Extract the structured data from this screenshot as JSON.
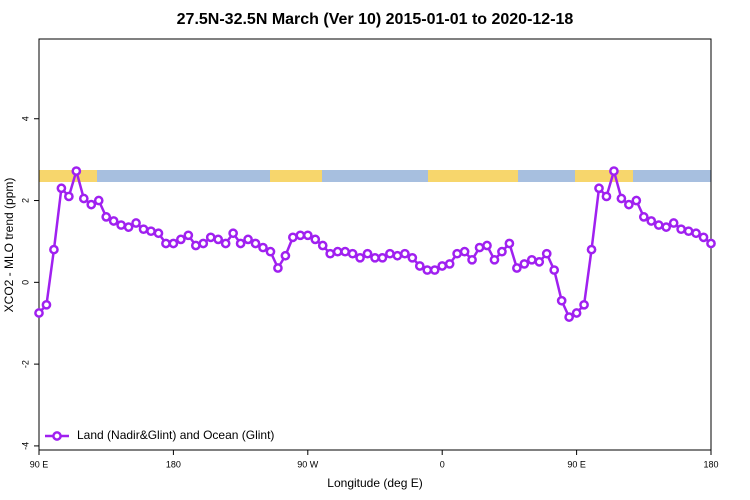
{
  "chart_data": {
    "type": "line",
    "title": "27.5N-32.5N March (Ver 10)   2015-01-01 to 2020-12-18",
    "x_label": "Longitude (deg E)",
    "y_label": "XCO2 - MLO trend (ppm)",
    "x": [
      90,
      95,
      100,
      105,
      110,
      115,
      120,
      125,
      130,
      135,
      140,
      145,
      150,
      155,
      160,
      165,
      170,
      175,
      180,
      185,
      190,
      195,
      200,
      205,
      210,
      215,
      220,
      225,
      230,
      235,
      240,
      245,
      250,
      255,
      260,
      265,
      270,
      275,
      280,
      285,
      290,
      295,
      300,
      305,
      310,
      315,
      320,
      325,
      330,
      335,
      340,
      345,
      350,
      355,
      360,
      365,
      370,
      375,
      380,
      385,
      390,
      395,
      400,
      405,
      410,
      415,
      420,
      425,
      430,
      435,
      440,
      445,
      450,
      455,
      460,
      465,
      470,
      475,
      480,
      485,
      490,
      495,
      500,
      505,
      510,
      515,
      520,
      525,
      530,
      535,
      540
    ],
    "series": [
      {
        "name": "Land (Nadir&Glint) and Ocean (Glint)",
        "color": "#a020f0",
        "values": [
          -0.75,
          -0.55,
          0.8,
          2.3,
          2.1,
          2.72,
          2.05,
          1.9,
          2.0,
          1.6,
          1.5,
          1.4,
          1.35,
          1.45,
          1.3,
          1.25,
          1.2,
          0.95,
          0.95,
          1.05,
          1.15,
          0.9,
          0.95,
          1.1,
          1.05,
          0.95,
          1.2,
          0.95,
          1.05,
          0.95,
          0.85,
          0.75,
          0.35,
          0.65,
          1.1,
          1.15,
          1.15,
          1.05,
          0.9,
          0.7,
          0.75,
          0.75,
          0.7,
          0.6,
          0.7,
          0.6,
          0.6,
          0.7,
          0.65,
          0.7,
          0.6,
          0.4,
          0.3,
          0.3,
          0.4,
          0.45,
          0.7,
          0.75,
          0.55,
          0.85,
          0.9,
          0.55,
          0.75,
          0.95,
          0.35,
          0.45,
          0.55,
          0.5,
          0.7,
          0.3,
          -0.45,
          -0.85,
          -0.75,
          -0.55,
          0.8,
          2.3,
          2.1,
          2.72,
          2.05,
          1.9,
          2.0,
          1.6,
          1.5,
          1.4,
          1.35,
          1.45,
          1.3,
          1.25,
          1.2,
          1.1,
          0.95
        ]
      }
    ],
    "xlim": [
      90,
      540
    ],
    "xticks": [
      {
        "value": 90,
        "label": "90 E"
      },
      180,
      {
        "value": 270,
        "label": "90 W"
      },
      {
        "value": 360,
        "label": "0"
      },
      {
        "value": 450,
        "label": "90 E"
      },
      {
        "value": 540,
        "label": "180"
      }
    ],
    "ylim": [
      -4.1,
      5.95
    ],
    "yticks": [
      -4,
      -2,
      0,
      2,
      4
    ],
    "legend_position": "lower left"
  }
}
